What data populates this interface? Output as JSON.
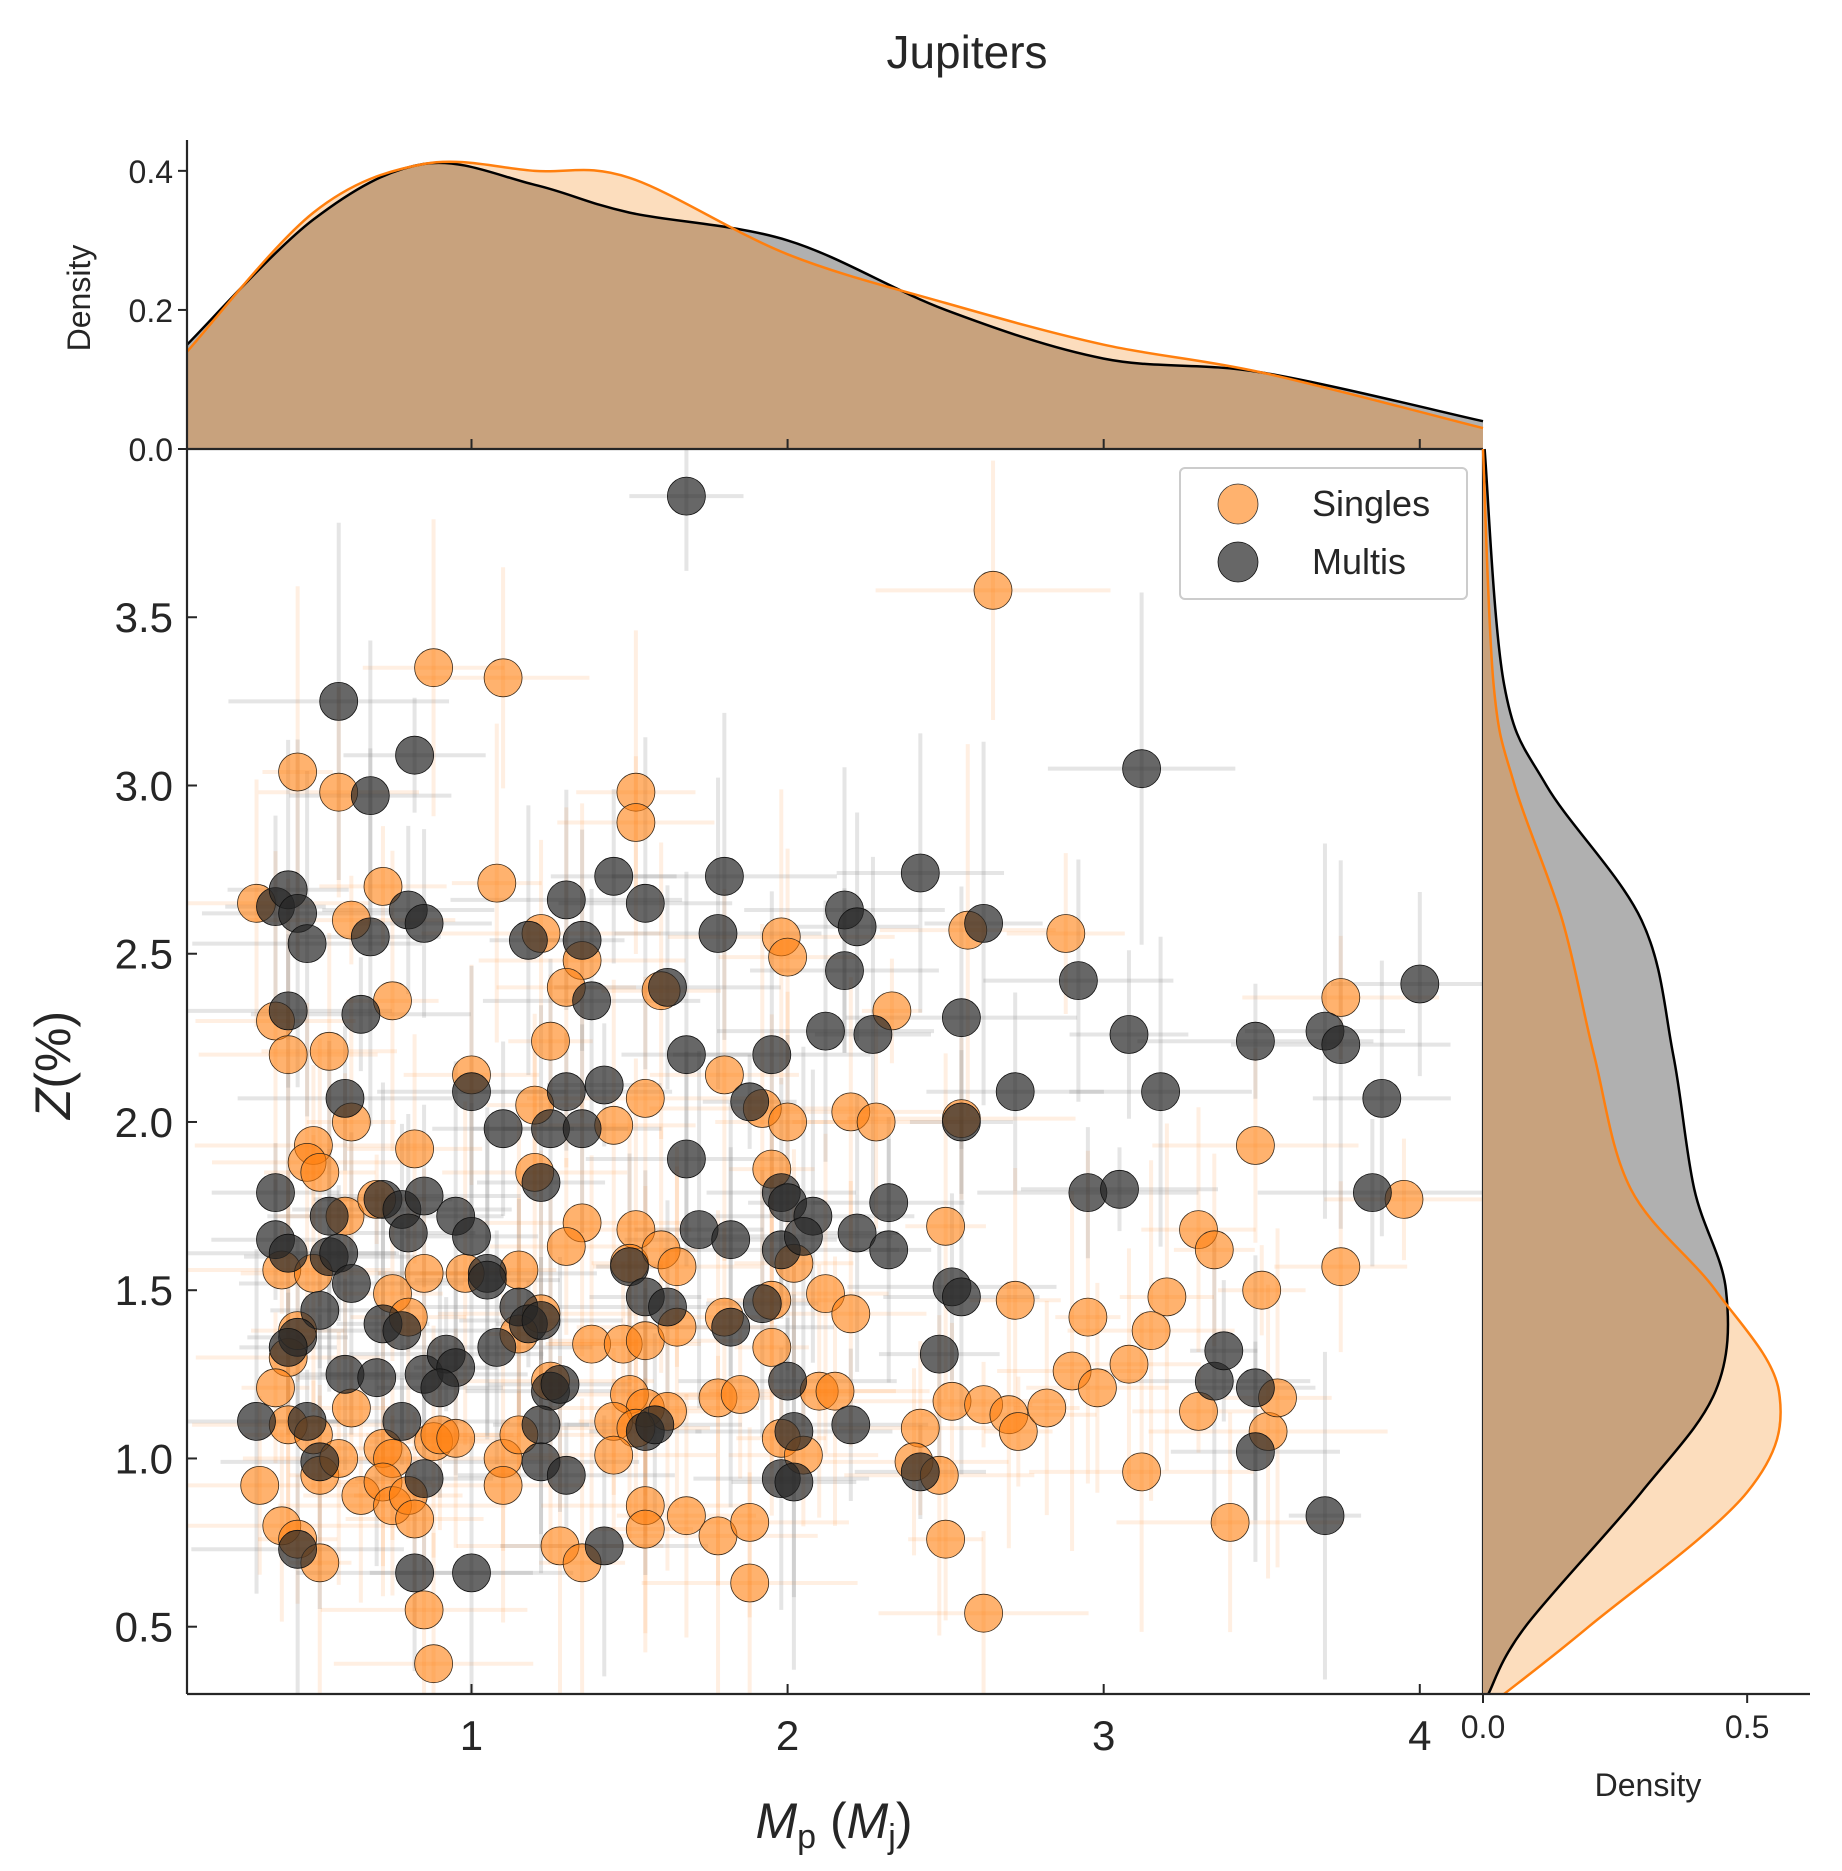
{
  "chart_data": {
    "type": "scatter",
    "title": "Jupiters",
    "xlabel": {
      "main": "M",
      "sub": "p",
      "open": " (",
      "unit": "M",
      "unitsub": "j",
      "close": ")"
    },
    "ylabel": {
      "italic": "Z",
      "rest": "(%)"
    },
    "xlim": [
      0.1,
      4.2
    ],
    "ylim": [
      0.3,
      4.0
    ],
    "x_ticks": [
      1,
      2,
      3,
      4
    ],
    "y_ticks": [
      "0.5",
      "1.0",
      "1.5",
      "2.0",
      "2.5",
      "3.0",
      "3.5"
    ],
    "top_marginal": {
      "ylabel": "Density",
      "ylim": [
        0,
        0.43
      ],
      "ticks": [
        "0.0",
        "0.2",
        "0.4"
      ]
    },
    "right_marginal": {
      "xlabel": "Density",
      "xlim": [
        0,
        0.6
      ],
      "ticks": [
        "0.0",
        "0.5"
      ]
    },
    "legend": {
      "position": "top-right",
      "entries": [
        "Singles",
        "Multis"
      ]
    },
    "colors": {
      "singles": "#ff7f0e",
      "multis": "#262626",
      "overlap": "#c8a27d",
      "multis_fill": "#b0b0b0",
      "singles_fill": "#fcd9b6"
    },
    "series": [
      {
        "name": "Singles",
        "points": [
          [
            0.32,
            2.65
          ],
          [
            0.45,
            3.04
          ],
          [
            0.58,
            2.98
          ],
          [
            0.72,
            2.7
          ],
          [
            0.88,
            3.35
          ],
          [
            1.1,
            3.32
          ],
          [
            1.08,
            2.71
          ],
          [
            1.52,
            2.98
          ],
          [
            1.52,
            2.89
          ],
          [
            2.65,
            3.58
          ],
          [
            0.62,
            2.6
          ],
          [
            0.75,
            2.36
          ],
          [
            1.22,
            2.56
          ],
          [
            1.35,
            2.48
          ],
          [
            1.3,
            2.4
          ],
          [
            1.98,
            2.55
          ],
          [
            2.0,
            2.49
          ],
          [
            2.57,
            2.57
          ],
          [
            2.88,
            2.56
          ],
          [
            3.75,
            2.37
          ],
          [
            0.38,
            2.3
          ],
          [
            0.42,
            2.2
          ],
          [
            0.55,
            2.21
          ],
          [
            1.25,
            2.24
          ],
          [
            1.6,
            2.39
          ],
          [
            1.8,
            2.14
          ],
          [
            2.33,
            2.33
          ],
          [
            0.62,
            2.0
          ],
          [
            1.0,
            2.14
          ],
          [
            0.5,
            1.93
          ],
          [
            0.48,
            1.88
          ],
          [
            0.52,
            1.85
          ],
          [
            0.82,
            1.92
          ],
          [
            1.2,
            2.05
          ],
          [
            1.45,
            1.99
          ],
          [
            1.55,
            2.07
          ],
          [
            1.92,
            2.04
          ],
          [
            2.0,
            2.0
          ],
          [
            2.2,
            2.03
          ],
          [
            2.28,
            2.0
          ],
          [
            2.55,
            2.01
          ],
          [
            0.6,
            1.72
          ],
          [
            0.7,
            1.77
          ],
          [
            1.2,
            1.85
          ],
          [
            1.35,
            1.7
          ],
          [
            1.52,
            1.68
          ],
          [
            1.3,
            1.63
          ],
          [
            1.95,
            1.86
          ],
          [
            2.5,
            1.69
          ],
          [
            3.3,
            1.68
          ],
          [
            3.35,
            1.62
          ],
          [
            3.48,
            1.93
          ],
          [
            3.95,
            1.77
          ],
          [
            3.75,
            1.57
          ],
          [
            0.4,
            1.56
          ],
          [
            0.5,
            1.55
          ],
          [
            0.75,
            1.49
          ],
          [
            0.8,
            1.42
          ],
          [
            0.85,
            1.55
          ],
          [
            0.98,
            1.55
          ],
          [
            1.15,
            1.56
          ],
          [
            1.22,
            1.43
          ],
          [
            1.15,
            1.37
          ],
          [
            1.5,
            1.58
          ],
          [
            1.6,
            1.62
          ],
          [
            1.65,
            1.57
          ],
          [
            1.8,
            1.42
          ],
          [
            1.95,
            1.47
          ],
          [
            2.02,
            1.58
          ],
          [
            2.12,
            1.49
          ],
          [
            2.2,
            1.43
          ],
          [
            2.72,
            1.47
          ],
          [
            2.95,
            1.42
          ],
          [
            3.2,
            1.48
          ],
          [
            3.15,
            1.38
          ],
          [
            3.5,
            1.5
          ],
          [
            0.42,
            1.3
          ],
          [
            0.45,
            1.38
          ],
          [
            0.38,
            1.21
          ],
          [
            0.42,
            1.1
          ],
          [
            0.5,
            1.07
          ],
          [
            0.62,
            1.15
          ],
          [
            0.72,
            1.03
          ],
          [
            0.75,
            1.0
          ],
          [
            0.88,
            1.05
          ],
          [
            0.9,
            1.07
          ],
          [
            0.95,
            1.06
          ],
          [
            1.1,
            1.0
          ],
          [
            1.15,
            1.07
          ],
          [
            1.25,
            1.23
          ],
          [
            1.38,
            1.34
          ],
          [
            1.48,
            1.34
          ],
          [
            1.55,
            1.35
          ],
          [
            1.65,
            1.39
          ],
          [
            1.5,
            1.19
          ],
          [
            1.55,
            1.15
          ],
          [
            1.62,
            1.14
          ],
          [
            1.45,
            1.11
          ],
          [
            1.52,
            1.09
          ],
          [
            1.78,
            1.18
          ],
          [
            1.85,
            1.19
          ],
          [
            1.95,
            1.33
          ],
          [
            1.98,
            1.06
          ],
          [
            2.05,
            1.01
          ],
          [
            2.1,
            1.2
          ],
          [
            2.15,
            1.2
          ],
          [
            2.42,
            1.09
          ],
          [
            2.4,
            0.99
          ],
          [
            2.52,
            1.17
          ],
          [
            2.62,
            1.16
          ],
          [
            2.7,
            1.13
          ],
          [
            2.73,
            1.08
          ],
          [
            2.82,
            1.15
          ],
          [
            2.9,
            1.26
          ],
          [
            2.98,
            1.21
          ],
          [
            3.08,
            1.28
          ],
          [
            3.12,
            0.96
          ],
          [
            3.3,
            1.14
          ],
          [
            3.52,
            1.08
          ],
          [
            3.55,
            1.18
          ],
          [
            0.33,
            0.92
          ],
          [
            0.4,
            0.8
          ],
          [
            0.45,
            0.76
          ],
          [
            0.52,
            0.95
          ],
          [
            0.58,
            1.0
          ],
          [
            0.65,
            0.89
          ],
          [
            0.72,
            0.93
          ],
          [
            0.75,
            0.86
          ],
          [
            0.8,
            0.89
          ],
          [
            0.82,
            0.82
          ],
          [
            0.85,
            0.55
          ],
          [
            0.88,
            0.39
          ],
          [
            0.52,
            0.69
          ],
          [
            1.1,
            0.92
          ],
          [
            1.28,
            0.74
          ],
          [
            1.35,
            0.69
          ],
          [
            1.45,
            1.01
          ],
          [
            1.55,
            0.86
          ],
          [
            1.55,
            0.79
          ],
          [
            1.68,
            0.83
          ],
          [
            1.78,
            0.77
          ],
          [
            1.88,
            0.81
          ],
          [
            1.88,
            0.63
          ],
          [
            2.5,
            0.76
          ],
          [
            2.48,
            0.95
          ],
          [
            2.62,
            0.54
          ],
          [
            3.4,
            0.81
          ]
        ]
      },
      {
        "name": "Multis",
        "points": [
          [
            1.68,
            3.86
          ],
          [
            0.58,
            3.25
          ],
          [
            0.82,
            3.09
          ],
          [
            0.68,
            2.97
          ],
          [
            3.12,
            3.05
          ],
          [
            0.38,
            2.64
          ],
          [
            0.42,
            2.69
          ],
          [
            0.45,
            2.62
          ],
          [
            0.48,
            2.53
          ],
          [
            0.68,
            2.55
          ],
          [
            0.8,
            2.63
          ],
          [
            0.85,
            2.59
          ],
          [
            1.45,
            2.73
          ],
          [
            1.55,
            2.65
          ],
          [
            1.3,
            2.66
          ],
          [
            1.18,
            2.54
          ],
          [
            1.35,
            2.54
          ],
          [
            1.38,
            2.36
          ],
          [
            1.8,
            2.73
          ],
          [
            1.78,
            2.56
          ],
          [
            1.62,
            2.4
          ],
          [
            2.18,
            2.63
          ],
          [
            2.22,
            2.58
          ],
          [
            2.42,
            2.74
          ],
          [
            2.62,
            2.59
          ],
          [
            2.18,
            2.45
          ],
          [
            2.92,
            2.42
          ],
          [
            4.0,
            2.41
          ],
          [
            0.42,
            2.33
          ],
          [
            0.65,
            2.32
          ],
          [
            1.68,
            2.2
          ],
          [
            1.95,
            2.2
          ],
          [
            2.12,
            2.27
          ],
          [
            2.27,
            2.26
          ],
          [
            2.55,
            2.31
          ],
          [
            3.08,
            2.26
          ],
          [
            3.48,
            2.24
          ],
          [
            3.7,
            2.27
          ],
          [
            3.75,
            2.23
          ],
          [
            0.6,
            2.07
          ],
          [
            1.0,
            2.09
          ],
          [
            1.42,
            2.11
          ],
          [
            1.3,
            2.09
          ],
          [
            1.1,
            1.98
          ],
          [
            1.25,
            1.98
          ],
          [
            1.35,
            1.98
          ],
          [
            1.88,
            2.06
          ],
          [
            2.55,
            2.0
          ],
          [
            2.72,
            2.09
          ],
          [
            3.18,
            2.09
          ],
          [
            3.88,
            2.07
          ],
          [
            1.68,
            1.89
          ],
          [
            0.38,
            1.79
          ],
          [
            0.55,
            1.72
          ],
          [
            0.72,
            1.77
          ],
          [
            0.78,
            1.74
          ],
          [
            0.85,
            1.78
          ],
          [
            0.95,
            1.72
          ],
          [
            1.22,
            1.82
          ],
          [
            1.72,
            1.68
          ],
          [
            1.82,
            1.65
          ],
          [
            1.98,
            1.79
          ],
          [
            2.0,
            1.76
          ],
          [
            2.08,
            1.72
          ],
          [
            2.22,
            1.67
          ],
          [
            2.32,
            1.76
          ],
          [
            2.32,
            1.62
          ],
          [
            2.95,
            1.79
          ],
          [
            3.05,
            1.8
          ],
          [
            3.85,
            1.79
          ],
          [
            0.38,
            1.65
          ],
          [
            0.42,
            1.61
          ],
          [
            0.55,
            1.6
          ],
          [
            0.58,
            1.61
          ],
          [
            0.62,
            1.52
          ],
          [
            0.8,
            1.67
          ],
          [
            1.0,
            1.66
          ],
          [
            1.05,
            1.55
          ],
          [
            1.05,
            1.53
          ],
          [
            1.15,
            1.45
          ],
          [
            1.18,
            1.4
          ],
          [
            1.5,
            1.57
          ],
          [
            1.55,
            1.48
          ],
          [
            1.62,
            1.45
          ],
          [
            1.82,
            1.39
          ],
          [
            1.92,
            1.46
          ],
          [
            1.98,
            1.62
          ],
          [
            2.05,
            1.66
          ],
          [
            2.52,
            1.51
          ],
          [
            2.55,
            1.48
          ],
          [
            0.52,
            1.44
          ],
          [
            0.45,
            1.36
          ],
          [
            0.42,
            1.33
          ],
          [
            0.6,
            1.25
          ],
          [
            0.72,
            1.4
          ],
          [
            0.78,
            1.38
          ],
          [
            0.7,
            1.24
          ],
          [
            0.85,
            1.25
          ],
          [
            0.92,
            1.31
          ],
          [
            0.95,
            1.27
          ],
          [
            1.08,
            1.33
          ],
          [
            1.22,
            1.41
          ],
          [
            1.25,
            1.2
          ],
          [
            1.28,
            1.22
          ],
          [
            0.32,
            1.11
          ],
          [
            0.48,
            1.11
          ],
          [
            0.52,
            0.99
          ],
          [
            0.78,
            1.11
          ],
          [
            0.85,
            0.94
          ],
          [
            0.9,
            1.21
          ],
          [
            1.22,
            1.1
          ],
          [
            1.22,
            0.99
          ],
          [
            1.3,
            0.95
          ],
          [
            1.55,
            1.08
          ],
          [
            1.58,
            1.1
          ],
          [
            2.0,
            1.23
          ],
          [
            2.02,
            1.08
          ],
          [
            2.2,
            1.1
          ],
          [
            1.98,
            0.94
          ],
          [
            2.02,
            0.93
          ],
          [
            2.42,
            0.96
          ],
          [
            2.48,
            1.31
          ],
          [
            3.35,
            1.23
          ],
          [
            3.38,
            1.32
          ],
          [
            3.48,
            1.21
          ],
          [
            3.48,
            1.02
          ],
          [
            0.45,
            0.73
          ],
          [
            0.82,
            0.66
          ],
          [
            1.0,
            0.66
          ],
          [
            1.42,
            0.74
          ],
          [
            3.7,
            0.83
          ]
        ]
      }
    ],
    "kde": {
      "top": {
        "x": [
          0.1,
          0.5,
          0.85,
          1.2,
          1.5,
          2.0,
          2.5,
          3.0,
          3.5,
          4.2
        ],
        "singles": [
          0.14,
          0.34,
          0.41,
          0.4,
          0.39,
          0.28,
          0.21,
          0.15,
          0.11,
          0.03
        ],
        "multis": [
          0.15,
          0.33,
          0.41,
          0.38,
          0.34,
          0.3,
          0.2,
          0.13,
          0.11,
          0.04
        ]
      },
      "right": {
        "y": [
          0.3,
          0.5,
          0.9,
          1.2,
          1.5,
          1.8,
          2.2,
          2.6,
          3.0,
          3.3,
          4.0
        ],
        "singles": [
          0.04,
          0.2,
          0.5,
          0.56,
          0.44,
          0.28,
          0.21,
          0.15,
          0.06,
          0.02,
          0.0
        ],
        "multis": [
          0.01,
          0.08,
          0.3,
          0.44,
          0.46,
          0.4,
          0.36,
          0.3,
          0.12,
          0.04,
          0.003
        ]
      }
    }
  }
}
